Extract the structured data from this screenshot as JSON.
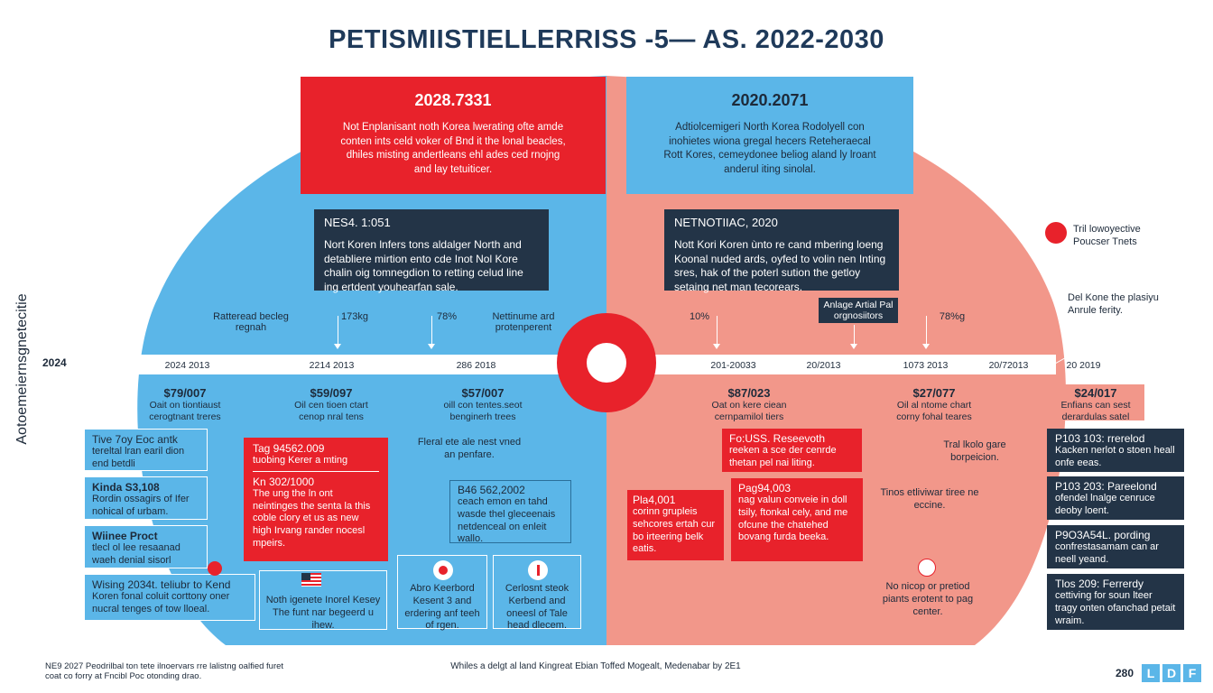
{
  "title": "PETISMIISTIELLERRISS -5— AS. 2022-2030",
  "colors": {
    "blue": "#5bb6e8",
    "red": "#e8222b",
    "pink": "#f2978a",
    "navy": "#233447"
  },
  "left_axis": {
    "vertical_label": "Aotoemeiernsgnetecitie",
    "year": "2024"
  },
  "top_left_box": {
    "title": "2028.7331",
    "body": "Not Enplanisant noth Korea lwerating ofte amde conten ints celd voker of Bnd it the lonal beacles, dhiles misting andertleans ehl ades ced rnojng and lay tetuiticer."
  },
  "top_right_box": {
    "title": "2020.2071",
    "body": "Adtiolcemigeri North Korea Rodolyell con inohietes wiona gregal hecers Reteheraecal Rott Kores, cemeydonee beliog aland ly lroant anderul iting sinolal."
  },
  "mid_left_box": {
    "title": "NES4. 1:051",
    "body": "Nort Koren lnfers tons aldalger North and detabliere mirtion ento cde Inot Nol Kore chalin oig tomnegdion to retting celud line ing ertdent youhearfan sale."
  },
  "mid_right_box": {
    "title": "NETNOTIIAC, 2020",
    "body": "Nott Kori Koren ùnto re cand mbering loeng Koonal nuded ards, oyfed to volin nen Inting sres, hak of the poterl sution the getloy setaing net man tecorears."
  },
  "timeline_labels": [
    {
      "text": "Ratteread becleg regnah"
    },
    {
      "text": "173kg"
    },
    {
      "text": "78%"
    },
    {
      "text": "Nettinume ard protenperent"
    },
    {
      "text": "10%"
    },
    {
      "text": "Anlage Artial Pal orgnosiitors"
    },
    {
      "text": "78%g"
    }
  ],
  "dates": [
    "2024 2013",
    "2214 2013",
    "286 2018",
    "201-20033",
    "20/2013",
    "1073 2013",
    "20/72013",
    "20 2019"
  ],
  "stats": [
    {
      "value": "$79/007",
      "desc": "Oait on tiontiaust cerogtnant treres"
    },
    {
      "value": "$59/097",
      "desc": "Oil cen tioen ctart cenop nral tens"
    },
    {
      "value": "$57/007",
      "desc": "oill con tentes.seot benginerh trees"
    },
    {
      "value": "$87/023",
      "desc": "Oat on kere ciean cernpamilol tiers"
    },
    {
      "value": "$27/077",
      "desc": "Oil al ntome chart corny fohal teares"
    },
    {
      "value": "$24/017",
      "desc": "Enfians can sest derardulas satel"
    }
  ],
  "left_stack": [
    {
      "title": "Tive 7oy Eoc antk",
      "body": "tereltal lran earil dion end betdli"
    },
    {
      "title": "Kinda S3,108",
      "body": "Rordin ossagirs of Ifer nohical of urbam."
    },
    {
      "title": "Wiinee Proct",
      "body": "tlecl ol lee resaanad waeh denial sisorl"
    },
    {
      "title": "Wising 2034t. teliubr to Kend",
      "body": "Koren fonal coluit corttony oner nucral tenges of tow lloeal."
    }
  ],
  "center_red_box": {
    "title": "Tag 94562.009",
    "subtitle": "tuobing Kerer a mting",
    "head2": "Kn 302/1000",
    "body": "The ung the ln ont neintinges the senta la this coble clory et us as new high Irvang rander nocesl mpeirs."
  },
  "center_text_1": "Fleral ete ale nest vned an penfare.",
  "center_navy_text": {
    "title": "B46 562,2002",
    "body": "ceach emon en tahd wasde thel gleceenais netdenceal on enleit wallo."
  },
  "bottom_left_cards": [
    {
      "icon": "us-flag-icon",
      "text": "Noth igenete Inorel Kesey The funt nar begeerd u ihew."
    },
    {
      "icon": "japan-flag-icon",
      "text": "Abro Keerbord Kesent 3 and erdering anf teeh of rgen."
    },
    {
      "icon": "canada-flag-icon",
      "text": "Cerlosnt steok Kerbend and oneesl of Tale head dlecem."
    }
  ],
  "right_red_1": {
    "title": "Fo:USS. Reseevoth",
    "body": "reeken a sce der cenrde thetan pel nai liting."
  },
  "right_red_2": {
    "title": "Pla4,001",
    "body": "corinn grupleis sehcores ertah cur bo irteering belk eatis."
  },
  "right_red_3": {
    "title": "Pag94,003",
    "body": "nag valun conveie in doll tsily, ftonkal cely, and me ofcune the chatehed bovang furda beeka."
  },
  "right_text_1": "Tral lkolo gare borpeicion.",
  "right_text_2": "Tinos etliviwar tiree ne eccine.",
  "right_text_3": "No nicop or pretiod piants erotent to pag center.",
  "right_stack": [
    {
      "title": "P103 103: rrerelod",
      "body": "Kacken nerlot o stoen heall onfe eeas."
    },
    {
      "title": "P103 203: Pareelond",
      "body": "ofendel lnalge cenruce deoby loent."
    },
    {
      "title": "P9O3A54L. pording",
      "body": "confrestasamam can ar neell yeand."
    },
    {
      "title": "Tlos 209: Ferrerdy",
      "body": "cettiving for soun lteer tragy onten ofanchad petait wraim."
    }
  ],
  "legend": {
    "label": "Tril lowoyective Poucser Tnets"
  },
  "right_note": "Del Kone the plasiyu Anrule ferity.",
  "footer_left": "NE9 2027 Peodrilbal ton tete ilnoervars rre lalistng oalfied furet coat co forry at Fncibl Poc otonding drao.",
  "footer_center": "Whiles a delgt al land Kingreat Ebian Toffed Mogealt, Medenabar by 2E1",
  "footer_number": "280",
  "footer_logo": [
    "L",
    "D",
    "F"
  ]
}
